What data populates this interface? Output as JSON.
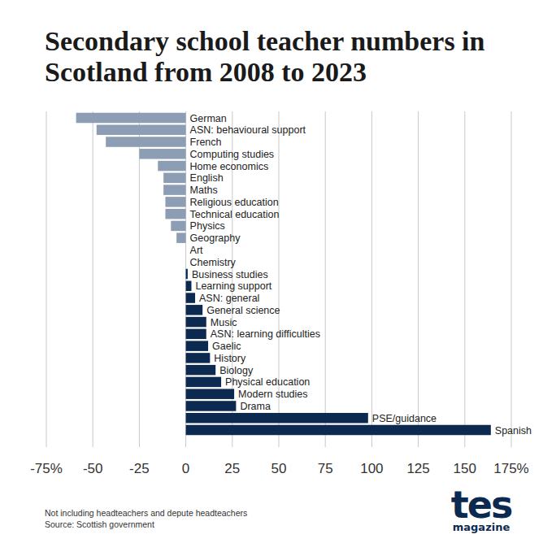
{
  "chart_data": {
    "type": "bar",
    "orientation": "horizontal",
    "title": "Secondary school teacher numbers in Scotland from 2008 to 2023",
    "categories": [
      "German",
      "ASN: behavioural support",
      "French",
      "Computing studies",
      "Home economics",
      "English",
      "Maths",
      "Religious education",
      "Technical education",
      "Physics",
      "Geography",
      "Art",
      "Chemistry",
      "Business studies",
      "Learning support",
      "ASN: general",
      "General science",
      "Music",
      "ASN: learning difficulties",
      "Gaelic",
      "History",
      "Biology",
      "Physical education",
      "Modern studies",
      "Drama",
      "PSE/guidance",
      "Spanish"
    ],
    "values": [
      -59,
      -48,
      -43,
      -25,
      -15,
      -12,
      -12,
      -11,
      -11,
      -8,
      -5,
      0,
      0,
      1,
      3,
      5,
      9,
      11,
      11,
      12,
      13,
      16,
      19,
      26,
      27,
      98,
      164
    ],
    "colors": [
      "#8d9db3",
      "#8d9db3",
      "#8d9db3",
      "#8d9db3",
      "#8d9db3",
      "#8d9db3",
      "#8d9db3",
      "#8d9db3",
      "#8d9db3",
      "#8d9db3",
      "#8d9db3",
      "#8d9db3",
      "#8d9db3",
      "#0c2a50",
      "#0c2a50",
      "#0c2a50",
      "#0c2a50",
      "#0c2a50",
      "#0c2a50",
      "#0c2a50",
      "#0c2a50",
      "#0c2a50",
      "#0c2a50",
      "#0c2a50",
      "#0c2a50",
      "#0c2a50",
      "#0c2a50"
    ],
    "xlim": [
      -75,
      175
    ],
    "xticks": [
      {
        "value": -75,
        "label": "-75%"
      },
      -50,
      -25,
      0,
      25,
      50,
      75,
      100,
      125,
      150,
      {
        "value": 175,
        "label": "175%"
      }
    ],
    "grid": true,
    "notes": [
      "Not including headteachers and depute headteachers",
      "Source: Scottish government"
    ],
    "logo": [
      "tes",
      "magazine"
    ]
  }
}
